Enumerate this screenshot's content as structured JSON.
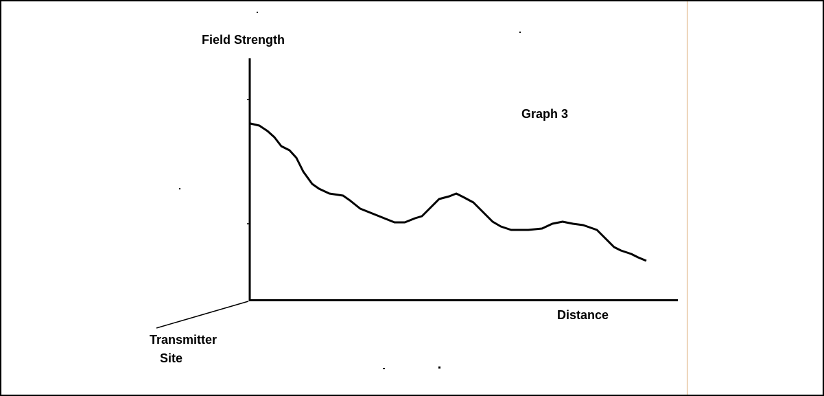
{
  "diagram": {
    "title": "Graph 3",
    "y_axis_label": "Field Strength",
    "x_axis_label": "Distance",
    "origin_label": [
      "Transmitter",
      "Site"
    ]
  }
}
